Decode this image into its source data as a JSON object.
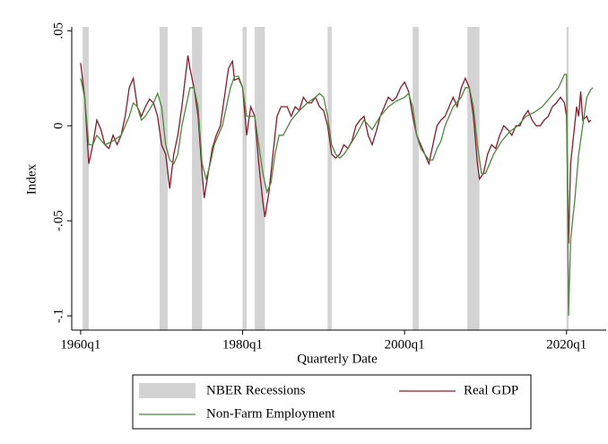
{
  "chart_data": {
    "type": "line",
    "x_label": "Quarterly Date",
    "y_label": "Index",
    "xlim": [
      1958.9,
      2024.9
    ],
    "ylim": [
      -0.1075,
      0.052
    ],
    "xticks": [
      {
        "value": 1960,
        "label": "1960q1"
      },
      {
        "value": 1980,
        "label": "1980q1"
      },
      {
        "value": 2000,
        "label": "2000q1"
      },
      {
        "value": 2020,
        "label": "2020q1"
      }
    ],
    "yticks": [
      {
        "value": -0.1,
        "label": "-.1"
      },
      {
        "value": -0.05,
        "label": "-.05"
      },
      {
        "value": 0,
        "label": "0"
      },
      {
        "value": 0.05,
        "label": ".05"
      }
    ],
    "recessions": {
      "name": "NBER Recessions",
      "color": "#d3d3d3",
      "periods": [
        [
          1960.25,
          1961.0
        ],
        [
          1969.75,
          1970.75
        ],
        [
          1973.75,
          1975.0
        ],
        [
          1980.0,
          1980.5
        ],
        [
          1981.5,
          1982.75
        ],
        [
          1990.5,
          1991.0
        ],
        [
          2001.0,
          2001.75
        ],
        [
          2007.75,
          2009.25
        ],
        [
          2020.0,
          2020.25
        ]
      ]
    },
    "series": [
      {
        "name": "Real GDP",
        "color": "#8b1a2b",
        "x": [
          1960.0,
          1960.5,
          1961.0,
          1961.5,
          1962.0,
          1962.5,
          1963.0,
          1963.5,
          1964.0,
          1964.5,
          1965.0,
          1965.5,
          1966.0,
          1966.5,
          1967.0,
          1967.5,
          1968.0,
          1968.5,
          1969.0,
          1969.5,
          1970.0,
          1970.5,
          1971.0,
          1971.5,
          1972.0,
          1972.5,
          1973.0,
          1973.25,
          1973.5,
          1974.0,
          1974.5,
          1975.0,
          1975.25,
          1975.75,
          1976.25,
          1976.75,
          1977.25,
          1977.75,
          1978.25,
          1978.75,
          1979.0,
          1979.5,
          1980.0,
          1980.5,
          1981.0,
          1981.5,
          1982.0,
          1982.5,
          1982.75,
          1983.25,
          1983.75,
          1984.25,
          1984.75,
          1985.5,
          1986.0,
          1986.5,
          1987.0,
          1987.5,
          1988.0,
          1988.5,
          1989.0,
          1989.5,
          1990.0,
          1990.5,
          1991.0,
          1991.5,
          1992.0,
          1992.5,
          1993.0,
          1993.5,
          1994.0,
          1994.5,
          1995.0,
          1995.5,
          1996.0,
          1996.5,
          1997.0,
          1997.5,
          1998.0,
          1998.5,
          1999.0,
          1999.5,
          2000.0,
          2000.5,
          2001.0,
          2001.5,
          2002.0,
          2002.5,
          2003.0,
          2003.5,
          2004.0,
          2004.5,
          2005.0,
          2005.5,
          2006.0,
          2006.5,
          2007.0,
          2007.5,
          2008.0,
          2008.5,
          2009.0,
          2009.25,
          2009.75,
          2010.25,
          2010.75,
          2011.25,
          2011.75,
          2012.25,
          2012.75,
          2013.25,
          2013.75,
          2014.25,
          2014.75,
          2015.25,
          2015.75,
          2016.25,
          2016.75,
          2017.25,
          2017.75,
          2018.25,
          2018.75,
          2019.25,
          2019.75,
          2020.0,
          2020.25,
          2020.5,
          2020.75,
          2021.0,
          2021.25,
          2021.5,
          2021.75,
          2022.0,
          2022.5,
          2022.75,
          2023.0
        ],
        "values": [
          0.033,
          0.015,
          -0.02,
          -0.01,
          0.003,
          -0.002,
          -0.01,
          -0.012,
          -0.005,
          -0.01,
          -0.005,
          0.005,
          0.02,
          0.025,
          0.01,
          0.005,
          0.01,
          0.014,
          0.012,
          0.005,
          -0.01,
          -0.015,
          -0.033,
          -0.015,
          -0.005,
          0.01,
          0.028,
          0.037,
          0.03,
          0.02,
          0.005,
          -0.025,
          -0.038,
          -0.025,
          -0.012,
          -0.005,
          0,
          0.015,
          0.03,
          0.034,
          0.024,
          0.025,
          0.02,
          -0.005,
          0.01,
          0.005,
          -0.02,
          -0.04,
          -0.048,
          -0.035,
          -0.015,
          0.005,
          0.01,
          0.01,
          0.005,
          0.01,
          0.008,
          0.015,
          0.012,
          0.012,
          0.015,
          0.01,
          0.008,
          0,
          -0.015,
          -0.017,
          -0.015,
          -0.01,
          -0.012,
          -0.008,
          0,
          0.003,
          0.005,
          -0.005,
          -0.01,
          -0.003,
          0.005,
          0.01,
          0.015,
          0.013,
          0.015,
          0.02,
          0.023,
          0.018,
          0.005,
          -0.005,
          -0.01,
          -0.015,
          -0.02,
          -0.01,
          0,
          0.003,
          0.005,
          0.01,
          0.015,
          0.01,
          0.02,
          0.025,
          0.02,
          0.005,
          -0.02,
          -0.028,
          -0.025,
          -0.015,
          -0.01,
          -0.012,
          -0.005,
          0,
          -0.002,
          -0.005,
          0,
          0,
          0.005,
          0.008,
          0.003,
          0,
          0,
          0.003,
          0.005,
          0.01,
          0.012,
          0.015,
          0.012,
          0.005,
          -0.062,
          -0.02,
          -0.01,
          0,
          0.01,
          0.005,
          0.018,
          0.003,
          0.005,
          0.002,
          0.003
        ]
      },
      {
        "name": "Non-Farm Employment",
        "color": "#4a8a3c",
        "x": [
          1960.0,
          1960.5,
          1961.0,
          1961.5,
          1962.0,
          1963.0,
          1964.0,
          1965.0,
          1966.0,
          1966.5,
          1967.0,
          1967.5,
          1968.0,
          1969.0,
          1969.5,
          1970.0,
          1970.5,
          1971.0,
          1971.5,
          1972.0,
          1972.5,
          1973.0,
          1973.5,
          1974.0,
          1974.5,
          1975.0,
          1975.5,
          1976.0,
          1976.5,
          1977.0,
          1977.5,
          1978.0,
          1978.5,
          1979.0,
          1979.5,
          1980.0,
          1980.5,
          1981.0,
          1981.5,
          1982.0,
          1982.5,
          1983.0,
          1983.5,
          1984.0,
          1984.5,
          1985.0,
          1986.0,
          1987.0,
          1988.0,
          1989.0,
          1989.5,
          1990.0,
          1990.5,
          1991.0,
          1991.5,
          1992.0,
          1992.5,
          1993.0,
          1994.0,
          1995.0,
          1996.0,
          1997.0,
          1998.0,
          1999.0,
          2000.0,
          2000.5,
          2001.0,
          2001.5,
          2002.0,
          2002.5,
          2003.0,
          2003.5,
          2004.0,
          2004.5,
          2005.0,
          2006.0,
          2007.0,
          2007.5,
          2008.0,
          2008.5,
          2009.0,
          2009.5,
          2010.0,
          2011.0,
          2012.0,
          2013.0,
          2014.0,
          2015.0,
          2016.0,
          2017.0,
          2018.0,
          2019.0,
          2019.75,
          2020.0,
          2020.25,
          2020.5,
          2021.0,
          2021.5,
          2022.0,
          2022.5,
          2023.0,
          2023.25
        ],
        "values": [
          0.025,
          0.015,
          -0.01,
          -0.01,
          -0.005,
          -0.01,
          -0.008,
          -0.005,
          0.005,
          0.012,
          0.01,
          0.003,
          0.005,
          0.012,
          0.017,
          0.01,
          -0.01,
          -0.018,
          -0.02,
          -0.015,
          0,
          0.01,
          0.02,
          0.02,
          0.01,
          -0.02,
          -0.028,
          -0.02,
          -0.01,
          -0.005,
          0,
          0.01,
          0.02,
          0.026,
          0.026,
          0.02,
          0.005,
          0.005,
          0.005,
          -0.01,
          -0.025,
          -0.035,
          -0.03,
          -0.015,
          -0.005,
          -0.005,
          0.003,
          0.008,
          0.012,
          0.015,
          0.017,
          0.015,
          0.005,
          -0.01,
          -0.015,
          -0.017,
          -0.015,
          -0.012,
          -0.005,
          0.003,
          -0.002,
          0.005,
          0.01,
          0.013,
          0.015,
          0.017,
          0.01,
          -0.005,
          -0.012,
          -0.015,
          -0.018,
          -0.018,
          -0.012,
          -0.008,
          0,
          0.01,
          0.015,
          0.02,
          0.02,
          0.01,
          -0.01,
          -0.025,
          -0.025,
          -0.015,
          -0.008,
          -0.003,
          0,
          0.005,
          0.007,
          0.01,
          0.015,
          0.02,
          0.027,
          0.027,
          -0.1,
          -0.06,
          -0.04,
          -0.015,
          0,
          0.015,
          0.019,
          0.02
        ]
      }
    ]
  }
}
